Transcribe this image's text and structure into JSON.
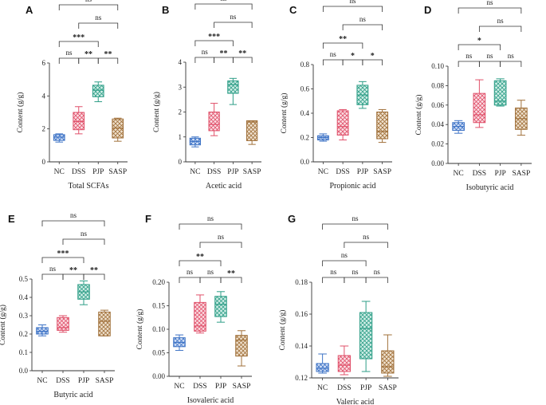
{
  "colors": {
    "NC": "#3f74c6",
    "DSS": "#e0506a",
    "PJP": "#2e9e87",
    "SASP": "#a0703a"
  },
  "ylabel": "Content (g/g)",
  "categories": [
    "NC",
    "DSS",
    "PJP",
    "SASP"
  ],
  "chart_data": [
    {
      "panel": "A",
      "type": "box",
      "title": "Total SCFAs",
      "ylabel": "Content (g/g)",
      "ylim": [
        0,
        6
      ],
      "yticks": [
        0,
        2,
        4,
        6
      ],
      "ytick_labels": [
        "0",
        "2",
        "4",
        "6"
      ],
      "categories": [
        "NC",
        "DSS",
        "PJP",
        "SASP"
      ],
      "boxes": [
        {
          "group": "NC",
          "min": 1.2,
          "q1": 1.3,
          "median": 1.5,
          "q3": 1.65,
          "max": 1.7
        },
        {
          "group": "DSS",
          "min": 1.7,
          "q1": 1.95,
          "median": 2.45,
          "q3": 3.0,
          "max": 3.35
        },
        {
          "group": "PJP",
          "min": 3.65,
          "q1": 3.95,
          "median": 4.35,
          "q3": 4.65,
          "max": 4.85
        },
        {
          "group": "SASP",
          "min": 1.25,
          "q1": 1.45,
          "median": 2.05,
          "q3": 2.6,
          "max": 2.65
        }
      ],
      "comparisons": [
        {
          "from": "NC",
          "to": "DSS",
          "label": "ns"
        },
        {
          "from": "DSS",
          "to": "PJP",
          "label": "**"
        },
        {
          "from": "PJP",
          "to": "SASP",
          "label": "**"
        },
        {
          "from": "NC",
          "to": "PJP",
          "label": "***"
        },
        {
          "from": "DSS",
          "to": "SASP",
          "label": "ns"
        },
        {
          "from": "NC",
          "to": "SASP",
          "label": "ns"
        }
      ]
    },
    {
      "panel": "B",
      "type": "box",
      "title": "Acetic acid",
      "ylabel": "Content (g/g)",
      "ylim": [
        0,
        4
      ],
      "yticks": [
        0,
        1,
        2,
        3,
        4
      ],
      "ytick_labels": [
        "0",
        "1",
        "2",
        "3",
        "4"
      ],
      "categories": [
        "NC",
        "DSS",
        "PJP",
        "SASP"
      ],
      "boxes": [
        {
          "group": "NC",
          "min": 0.6,
          "q1": 0.68,
          "median": 0.82,
          "q3": 0.95,
          "max": 1.0
        },
        {
          "group": "DSS",
          "min": 1.05,
          "q1": 1.25,
          "median": 1.5,
          "q3": 2.0,
          "max": 2.35
        },
        {
          "group": "PJP",
          "min": 2.3,
          "q1": 2.75,
          "median": 3.1,
          "q3": 3.25,
          "max": 3.35
        },
        {
          "group": "SASP",
          "min": 0.7,
          "q1": 0.85,
          "median": 1.6,
          "q3": 1.65,
          "max": 1.65
        }
      ],
      "comparisons": [
        {
          "from": "NC",
          "to": "DSS",
          "label": "ns"
        },
        {
          "from": "DSS",
          "to": "PJP",
          "label": "**"
        },
        {
          "from": "PJP",
          "to": "SASP",
          "label": "**"
        },
        {
          "from": "NC",
          "to": "PJP",
          "label": "***"
        },
        {
          "from": "DSS",
          "to": "SASP",
          "label": "ns"
        },
        {
          "from": "NC",
          "to": "SASP",
          "label": "ns"
        }
      ]
    },
    {
      "panel": "C",
      "type": "box",
      "title": "Propionic acid",
      "ylabel": "Content (g/g)",
      "ylim": [
        0,
        0.8
      ],
      "yticks": [
        0,
        0.2,
        0.4,
        0.6,
        0.8
      ],
      "ytick_labels": [
        "0.0",
        "0.2",
        "0.4",
        "0.6",
        "0.8"
      ],
      "categories": [
        "NC",
        "DSS",
        "PJP",
        "SASP"
      ],
      "boxes": [
        {
          "group": "NC",
          "min": 0.17,
          "q1": 0.18,
          "median": 0.2,
          "q3": 0.215,
          "max": 0.23
        },
        {
          "group": "DSS",
          "min": 0.18,
          "q1": 0.22,
          "median": 0.29,
          "q3": 0.42,
          "max": 0.43
        },
        {
          "group": "PJP",
          "min": 0.44,
          "q1": 0.47,
          "median": 0.55,
          "q3": 0.63,
          "max": 0.66
        },
        {
          "group": "SASP",
          "min": 0.16,
          "q1": 0.19,
          "median": 0.25,
          "q3": 0.41,
          "max": 0.43
        }
      ],
      "comparisons": [
        {
          "from": "NC",
          "to": "DSS",
          "label": "ns"
        },
        {
          "from": "DSS",
          "to": "PJP",
          "label": "*"
        },
        {
          "from": "PJP",
          "to": "SASP",
          "label": "*"
        },
        {
          "from": "NC",
          "to": "PJP",
          "label": "**"
        },
        {
          "from": "DSS",
          "to": "SASP",
          "label": "ns"
        },
        {
          "from": "NC",
          "to": "SASP",
          "label": "ns"
        }
      ]
    },
    {
      "panel": "D",
      "type": "box",
      "title": "Isobutyric acid",
      "ylabel": "Content (g/g)",
      "ylim": [
        0,
        0.1
      ],
      "yticks": [
        0,
        0.02,
        0.04,
        0.06,
        0.08,
        0.1
      ],
      "ytick_labels": [
        "0.00",
        "0.02",
        "0.04",
        "0.06",
        "0.08",
        "0.10"
      ],
      "categories": [
        "NC",
        "DSS",
        "PJP",
        "SASP"
      ],
      "boxes": [
        {
          "group": "NC",
          "min": 0.031,
          "q1": 0.034,
          "median": 0.038,
          "q3": 0.042,
          "max": 0.044
        },
        {
          "group": "DSS",
          "min": 0.037,
          "q1": 0.042,
          "median": 0.05,
          "q3": 0.072,
          "max": 0.086
        },
        {
          "group": "PJP",
          "min": 0.059,
          "q1": 0.06,
          "median": 0.064,
          "q3": 0.085,
          "max": 0.087
        },
        {
          "group": "SASP",
          "min": 0.029,
          "q1": 0.035,
          "median": 0.046,
          "q3": 0.057,
          "max": 0.065
        }
      ],
      "comparisons": [
        {
          "from": "NC",
          "to": "DSS",
          "label": "ns"
        },
        {
          "from": "DSS",
          "to": "PJP",
          "label": "ns"
        },
        {
          "from": "PJP",
          "to": "SASP",
          "label": "ns"
        },
        {
          "from": "NC",
          "to": "PJP",
          "label": "*"
        },
        {
          "from": "DSS",
          "to": "SASP",
          "label": "ns"
        },
        {
          "from": "NC",
          "to": "SASP",
          "label": "ns"
        }
      ]
    },
    {
      "panel": "E",
      "type": "box",
      "title": "Butyric acid",
      "ylabel": "Content (g/g)",
      "ylim": [
        0,
        0.5
      ],
      "yticks": [
        0,
        0.1,
        0.2,
        0.3,
        0.4,
        0.5
      ],
      "ytick_labels": [
        "0.0",
        "0.1",
        "0.2",
        "0.3",
        "0.4",
        "0.5"
      ],
      "categories": [
        "NC",
        "DSS",
        "PJP",
        "SASP"
      ],
      "boxes": [
        {
          "group": "NC",
          "min": 0.19,
          "q1": 0.2,
          "median": 0.215,
          "q3": 0.235,
          "max": 0.25
        },
        {
          "group": "DSS",
          "min": 0.21,
          "q1": 0.22,
          "median": 0.235,
          "q3": 0.29,
          "max": 0.3
        },
        {
          "group": "PJP",
          "min": 0.36,
          "q1": 0.39,
          "median": 0.43,
          "q3": 0.47,
          "max": 0.49
        },
        {
          "group": "SASP",
          "min": 0.19,
          "q1": 0.19,
          "median": 0.27,
          "q3": 0.32,
          "max": 0.33
        }
      ],
      "comparisons": [
        {
          "from": "NC",
          "to": "DSS",
          "label": "ns"
        },
        {
          "from": "DSS",
          "to": "PJP",
          "label": "**"
        },
        {
          "from": "PJP",
          "to": "SASP",
          "label": "**"
        },
        {
          "from": "NC",
          "to": "PJP",
          "label": "***"
        },
        {
          "from": "DSS",
          "to": "SASP",
          "label": "ns"
        },
        {
          "from": "NC",
          "to": "SASP",
          "label": "ns"
        }
      ]
    },
    {
      "panel": "F",
      "type": "box",
      "title": "Isovaleric acid",
      "ylabel": "Content (g/g)",
      "ylim": [
        0,
        0.2
      ],
      "yticks": [
        0,
        0.05,
        0.1,
        0.15,
        0.2
      ],
      "ytick_labels": [
        "0.00",
        "0.05",
        "0.10",
        "0.15",
        "0.20"
      ],
      "categories": [
        "NC",
        "DSS",
        "PJP",
        "SASP"
      ],
      "boxes": [
        {
          "group": "NC",
          "min": 0.055,
          "q1": 0.063,
          "median": 0.072,
          "q3": 0.082,
          "max": 0.088
        },
        {
          "group": "DSS",
          "min": 0.092,
          "q1": 0.096,
          "median": 0.107,
          "q3": 0.157,
          "max": 0.173
        },
        {
          "group": "PJP",
          "min": 0.115,
          "q1": 0.127,
          "median": 0.153,
          "q3": 0.17,
          "max": 0.18
        },
        {
          "group": "SASP",
          "min": 0.022,
          "q1": 0.043,
          "median": 0.077,
          "q3": 0.087,
          "max": 0.097
        }
      ],
      "comparisons": [
        {
          "from": "NC",
          "to": "DSS",
          "label": "ns"
        },
        {
          "from": "DSS",
          "to": "PJP",
          "label": "ns"
        },
        {
          "from": "PJP",
          "to": "SASP",
          "label": "**"
        },
        {
          "from": "NC",
          "to": "PJP",
          "label": "**"
        },
        {
          "from": "DSS",
          "to": "SASP",
          "label": "ns"
        },
        {
          "from": "NC",
          "to": "SASP",
          "label": "ns"
        }
      ]
    },
    {
      "panel": "G",
      "type": "box",
      "title": "Valeric acid",
      "ylabel": "Content (g/g)",
      "ylim": [
        0.12,
        0.18
      ],
      "yticks": [
        0.12,
        0.14,
        0.16,
        0.18
      ],
      "ytick_labels": [
        "0.12",
        "0.14",
        "0.16",
        "0.18"
      ],
      "categories": [
        "NC",
        "DSS",
        "PJP",
        "SASP"
      ],
      "boxes": [
        {
          "group": "NC",
          "min": 0.123,
          "q1": 0.124,
          "median": 0.126,
          "q3": 0.129,
          "max": 0.135
        },
        {
          "group": "DSS",
          "min": 0.122,
          "q1": 0.124,
          "median": 0.128,
          "q3": 0.134,
          "max": 0.14
        },
        {
          "group": "PJP",
          "min": 0.124,
          "q1": 0.132,
          "median": 0.151,
          "q3": 0.161,
          "max": 0.168
        },
        {
          "group": "SASP",
          "min": 0.121,
          "q1": 0.123,
          "median": 0.127,
          "q3": 0.137,
          "max": 0.147
        }
      ],
      "comparisons": [
        {
          "from": "NC",
          "to": "DSS",
          "label": "ns"
        },
        {
          "from": "DSS",
          "to": "PJP",
          "label": "ns"
        },
        {
          "from": "PJP",
          "to": "SASP",
          "label": "ns"
        },
        {
          "from": "NC",
          "to": "PJP",
          "label": "ns"
        },
        {
          "from": "DSS",
          "to": "SASP",
          "label": "ns"
        },
        {
          "from": "NC",
          "to": "SASP",
          "label": "ns"
        }
      ]
    }
  ]
}
